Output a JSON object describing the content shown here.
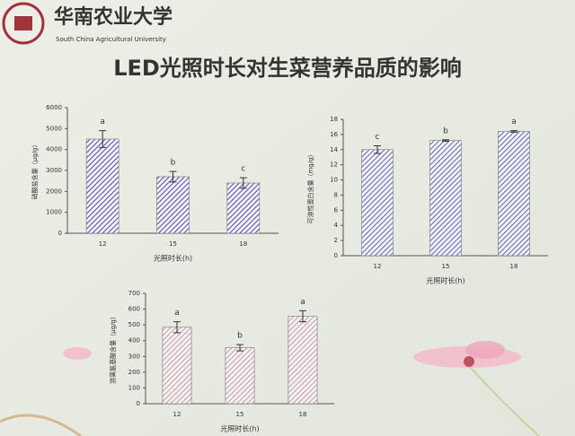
{
  "header": {
    "university": "华南农业大学",
    "university_en": "South China Agricultural University"
  },
  "title": "LED光照时长对生菜营养品质的影响",
  "chart_data": [
    {
      "type": "bar",
      "ylabel": "硝酸盐含量（μg/g）",
      "xlabel": "光照时长(h)",
      "categories": [
        "12",
        "15",
        "18"
      ],
      "values": [
        4500,
        2700,
        2400
      ],
      "errors": [
        400,
        250,
        250
      ],
      "annotations": [
        "a",
        "b",
        "c"
      ],
      "color": "#5a4fb0",
      "ylim": [
        0,
        6000
      ],
      "yticks": [
        0,
        1000,
        2000,
        3000,
        4000,
        5000,
        6000
      ]
    },
    {
      "type": "bar",
      "ylabel": "可溶性蛋白含量（mg/g）",
      "xlabel": "光照时长(h)",
      "categories": [
        "12",
        "15",
        "18"
      ],
      "values": [
        14,
        15.2,
        16.4
      ],
      "errors": [
        0.5,
        0.1,
        0.1
      ],
      "annotations": [
        "c",
        "b",
        "a"
      ],
      "color": "#6b6bb8",
      "ylim": [
        0,
        18
      ],
      "yticks": [
        0,
        2,
        4,
        6,
        8,
        10,
        12,
        14,
        16,
        18
      ]
    },
    {
      "type": "bar",
      "ylabel": "游离氨基酸含量（μg/g）",
      "xlabel": "光照时长(h)",
      "categories": [
        "12",
        "15",
        "18"
      ],
      "values": [
        485,
        355,
        555
      ],
      "errors": [
        35,
        20,
        35
      ],
      "annotations": [
        "a",
        "b",
        "a"
      ],
      "color": "#c9a0a0",
      "ylim": [
        0,
        700
      ],
      "yticks": [
        0,
        100,
        200,
        300,
        400,
        500,
        600,
        700
      ]
    }
  ]
}
